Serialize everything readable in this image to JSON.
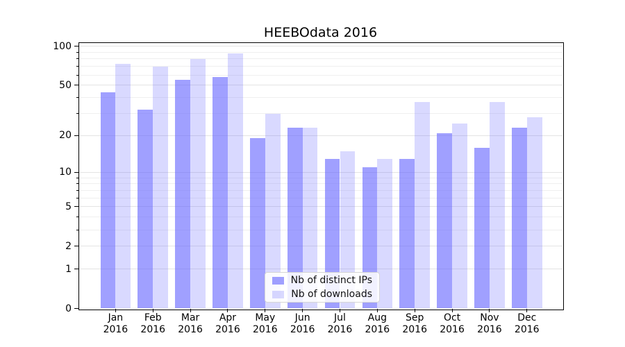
{
  "chart_data": {
    "type": "bar",
    "title": "HEEBOdata 2016",
    "x_tick_months": [
      "Jan",
      "Feb",
      "Mar",
      "Apr",
      "May",
      "Jun",
      "Jul",
      "Aug",
      "Sep",
      "Oct",
      "Nov",
      "Dec"
    ],
    "x_tick_year": "2016",
    "series": [
      {
        "name": "Nb of distinct IPs",
        "color": "rgba(102,102,255,0.62)",
        "values": [
          44,
          32,
          55,
          58,
          19,
          23,
          13,
          11,
          13,
          21,
          16,
          23
        ]
      },
      {
        "name": "Nb of downloads",
        "color": "rgba(102,102,255,0.25)",
        "values": [
          73,
          70,
          80,
          88,
          30,
          23,
          15,
          13,
          37,
          25,
          37,
          28
        ]
      }
    ],
    "y_axis": {
      "scale": "log1p",
      "ticks": [
        0,
        1,
        2,
        5,
        10,
        20,
        50,
        100
      ],
      "minor_ticks": [
        3,
        4,
        6,
        7,
        8,
        9,
        30,
        40,
        60,
        70,
        80,
        90
      ],
      "top_value": 108
    },
    "grid": {
      "major": true,
      "minor": true,
      "legend_position": "lower center"
    },
    "colors": {
      "major_grid": "#e3e3e3",
      "minor_grid": "#efefef",
      "axis": "#000000",
      "bar_base": "#6666ff"
    }
  }
}
